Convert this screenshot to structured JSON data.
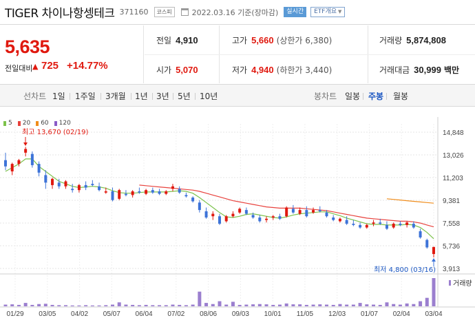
{
  "header": {
    "name": "TIGER 차이나항셍테크",
    "code": "371160",
    "market": "코스피",
    "date": "2022.03.16 기준(장마감)",
    "realtime": "실시간",
    "etf_overview": "ETF개요"
  },
  "price": {
    "current": "5,635",
    "change_label": "전일대비",
    "change": "725",
    "change_pct": "+14.77%"
  },
  "stats": {
    "prev_close": {
      "label": "전일",
      "value": "4,910"
    },
    "high": {
      "label": "고가",
      "value": "5,660",
      "sub": "(상한가 6,380)"
    },
    "volume": {
      "label": "거래량",
      "value": "5,874,808"
    },
    "open": {
      "label": "시가",
      "value": "5,070"
    },
    "low": {
      "label": "저가",
      "value": "4,940",
      "sub": "(하한가 3,440)"
    },
    "amount": {
      "label": "거래대금",
      "value": "30,999",
      "unit": "백만"
    }
  },
  "tabs": {
    "line_header": "선차트",
    "line": [
      "1일",
      "1주일",
      "3개월",
      "1년",
      "3년",
      "5년",
      "10년"
    ],
    "candle_header": "봉차트",
    "candle": [
      "일봉",
      "주봉",
      "월봉"
    ],
    "active_candle": "주봉"
  },
  "colors": {
    "up": "#e0190f",
    "down": "#3d73d8",
    "ma5": "#7cc24b",
    "ma20": "#e8413c",
    "ma60": "#f08c1a",
    "ma120": "#8a5bc7",
    "volume": "#9b7fcf",
    "accent": "#1a56c2"
  },
  "chart_data": {
    "type": "candlestick",
    "interval": "주봉",
    "legend": [
      "5",
      "20",
      "60",
      "120"
    ],
    "y_ticks": [
      "14,848",
      "13,026",
      "11,203",
      "9,381",
      "7,558",
      "5,736",
      "3,913"
    ],
    "x_ticks": [
      "01/29",
      "03/05",
      "04/02",
      "05/07",
      "06/04",
      "07/02",
      "08/06",
      "09/03",
      "10/01",
      "11/05",
      "12/03",
      "01/07",
      "02/04",
      "03/04"
    ],
    "ylim": [
      3913,
      14848
    ],
    "high_annotation": "최고 13,670 (02/19)",
    "low_annotation": "최저 4,800 (03/16)",
    "volume_label": "거래량",
    "candles": [
      [
        12600,
        13200,
        11800,
        12100
      ],
      [
        11700,
        12400,
        11400,
        12300
      ],
      [
        12300,
        12700,
        12100,
        12600
      ],
      [
        13200,
        13670,
        12900,
        13500
      ],
      [
        13100,
        13300,
        12000,
        12200
      ],
      [
        12300,
        12500,
        11300,
        11600
      ],
      [
        11400,
        11800,
        10300,
        10800
      ],
      [
        10600,
        11200,
        10300,
        11100
      ],
      [
        10800,
        11100,
        10300,
        10500
      ],
      [
        10500,
        11000,
        10300,
        10900
      ],
      [
        10300,
        10700,
        10000,
        10200
      ],
      [
        10200,
        10700,
        10000,
        10600
      ],
      [
        10600,
        10900,
        10200,
        10400
      ],
      [
        10700,
        11000,
        10500,
        10600
      ],
      [
        10500,
        10800,
        10100,
        10200
      ],
      [
        10000,
        10400,
        9900,
        10100
      ],
      [
        10100,
        10400,
        9300,
        9400
      ],
      [
        9500,
        10300,
        9400,
        10200
      ],
      [
        9900,
        10200,
        9700,
        9800
      ],
      [
        9800,
        10200,
        9600,
        10100
      ],
      [
        10100,
        10400,
        9900,
        10000
      ],
      [
        9900,
        10300,
        9800,
        10200
      ],
      [
        10200,
        10400,
        9900,
        10000
      ],
      [
        10100,
        10300,
        9800,
        9900
      ],
      [
        9900,
        10200,
        9800,
        10100
      ],
      [
        10300,
        10700,
        10100,
        10500
      ],
      [
        10300,
        10500,
        9900,
        10000
      ],
      [
        9800,
        10000,
        9600,
        9700
      ],
      [
        9600,
        9700,
        9200,
        9300
      ],
      [
        9200,
        9400,
        8400,
        8600
      ],
      [
        8500,
        8800,
        7900,
        8000
      ],
      [
        8100,
        8500,
        7800,
        8300
      ],
      [
        8100,
        8300,
        7400,
        7500
      ],
      [
        7700,
        8200,
        7600,
        8100
      ],
      [
        8100,
        8500,
        8000,
        8300
      ],
      [
        8400,
        8800,
        8300,
        8700
      ],
      [
        8600,
        8800,
        8200,
        8300
      ],
      [
        8200,
        8400,
        7900,
        8000
      ],
      [
        8000,
        8200,
        7600,
        7700
      ],
      [
        7800,
        8100,
        7600,
        7900
      ],
      [
        8000,
        8200,
        7800,
        8100
      ],
      [
        8100,
        8300,
        7800,
        7900
      ],
      [
        8100,
        8900,
        8000,
        8800
      ],
      [
        8700,
        9000,
        8300,
        8400
      ],
      [
        8300,
        8800,
        8200,
        8600
      ],
      [
        8600,
        8900,
        8000,
        8100
      ],
      [
        8400,
        8800,
        8300,
        8600
      ],
      [
        8600,
        8900,
        8400,
        8500
      ],
      [
        8400,
        8600,
        8000,
        8100
      ],
      [
        8000,
        8200,
        7700,
        7800
      ],
      [
        7700,
        8000,
        7600,
        7900
      ],
      [
        7800,
        8100,
        7400,
        7500
      ],
      [
        7500,
        7800,
        7300,
        7400
      ],
      [
        7400,
        7600,
        7100,
        7200
      ],
      [
        7200,
        7500,
        7100,
        7400
      ],
      [
        7500,
        7800,
        7300,
        7600
      ],
      [
        7600,
        7900,
        7400,
        7500
      ],
      [
        7400,
        7700,
        7000,
        7100
      ],
      [
        7200,
        7600,
        7100,
        7500
      ],
      [
        7500,
        7700,
        7300,
        7400
      ],
      [
        7400,
        7700,
        7200,
        7600
      ],
      [
        7500,
        7700,
        7100,
        7200
      ],
      [
        6900,
        7100,
        6300,
        6400
      ],
      [
        6200,
        6300,
        5500,
        5600
      ],
      [
        5070,
        5660,
        4800,
        5635
      ]
    ],
    "volumes": [
      0.06,
      0.07,
      0.05,
      0.12,
      0.05,
      0.08,
      0.09,
      0.05,
      0.04,
      0.04,
      0.03,
      0.03,
      0.04,
      0.03,
      0.03,
      0.04,
      0.06,
      0.14,
      0.06,
      0.05,
      0.04,
      0.05,
      0.04,
      0.04,
      0.04,
      0.06,
      0.05,
      0.04,
      0.06,
      0.52,
      0.12,
      0.08,
      0.18,
      0.06,
      0.16,
      0.05,
      0.06,
      0.07,
      0.08,
      0.07,
      0.05,
      0.06,
      0.1,
      0.07,
      0.07,
      0.05,
      0.06,
      0.07,
      0.06,
      0.05,
      0.08,
      0.06,
      0.06,
      0.12,
      0.07,
      0.06,
      0.05,
      0.14,
      0.08,
      0.06,
      0.1,
      0.08,
      0.18,
      0.3,
      1.0
    ],
    "ma5": [
      11700,
      12000,
      12300,
      12700,
      12700,
      12100,
      11700,
      11300,
      10900,
      10700,
      10500,
      10400,
      10450,
      10500,
      10450,
      10350,
      10150,
      10000,
      9950,
      9950,
      10000,
      10050,
      10050,
      10050,
      10050,
      10100,
      10150,
      10100,
      9950,
      9600,
      9200,
      8800,
      8400,
      8050,
      8000,
      8100,
      8250,
      8300,
      8200,
      8100,
      8000,
      7950,
      8050,
      8200,
      8300,
      8350,
      8400,
      8450,
      8450,
      8300,
      8150,
      7950,
      7800,
      7650,
      7500,
      7450,
      7450,
      7400,
      7400,
      7400,
      7450,
      7400,
      7200,
      6800,
      6300
    ],
    "ma20": [
      null,
      null,
      null,
      null,
      null,
      null,
      null,
      null,
      null,
      null,
      null,
      null,
      null,
      null,
      null,
      null,
      null,
      null,
      null,
      null,
      10600,
      10550,
      10500,
      10450,
      10400,
      10350,
      10300,
      10250,
      10200,
      10100,
      9950,
      9800,
      9650,
      9500,
      9350,
      9250,
      9150,
      9050,
      8950,
      8850,
      8800,
      8750,
      8750,
      8750,
      8750,
      8700,
      8650,
      8600,
      8550,
      8450,
      8350,
      8250,
      8150,
      8050,
      7950,
      7900,
      7850,
      7800,
      7750,
      7700,
      7700,
      7650,
      7550,
      7400,
      7250
    ],
    "ma60": [
      null,
      null,
      null,
      null,
      null,
      null,
      null,
      null,
      null,
      null,
      null,
      null,
      null,
      null,
      null,
      null,
      null,
      null,
      null,
      null,
      null,
      null,
      null,
      null,
      null,
      null,
      null,
      null,
      null,
      null,
      null,
      null,
      null,
      null,
      null,
      null,
      null,
      null,
      null,
      null,
      null,
      null,
      null,
      null,
      null,
      null,
      null,
      null,
      null,
      null,
      null,
      null,
      null,
      null,
      null,
      null,
      null,
      9500,
      9450,
      9400,
      9350,
      9300,
      9250,
      9200,
      9150
    ]
  }
}
